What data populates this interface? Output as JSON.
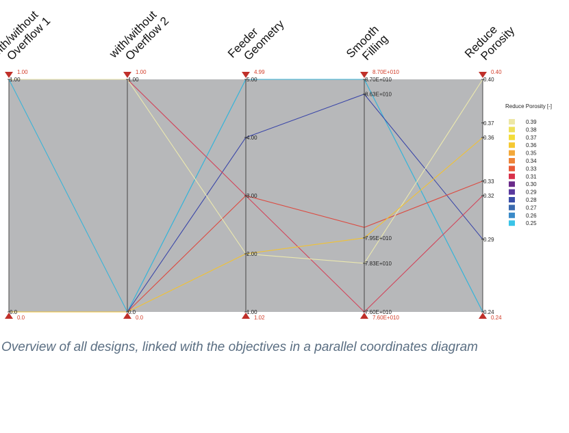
{
  "chart_data": {
    "type": "parallel-coordinates",
    "caption": "Overview of all designs, linked with the objectives in a parallel coordinates diagram",
    "axes": [
      {
        "key": "overflow1",
        "title": [
          "with/without",
          "Overflow 1"
        ],
        "min": 0.0,
        "max": 1.0,
        "min_label": "0.0",
        "max_label": "1.00",
        "ticks": [
          {
            "v": 1.0,
            "t": "1.00"
          },
          {
            "v": 0.0,
            "t": "0.0"
          }
        ]
      },
      {
        "key": "overflow2",
        "title": [
          "with/without",
          "Overflow 2"
        ],
        "min": 0.0,
        "max": 1.0,
        "min_label": "0.0",
        "max_label": "1.00",
        "ticks": [
          {
            "v": 1.0,
            "t": "1.00"
          },
          {
            "v": 0.0,
            "t": "0.0"
          }
        ]
      },
      {
        "key": "feeder",
        "title": [
          "Feeder",
          "Geometry"
        ],
        "min": 1.0,
        "max": 5.0,
        "min_label": "1.02",
        "max_label": "4.99",
        "ticks": [
          {
            "v": 5.0,
            "t": "5.00"
          },
          {
            "v": 4.0,
            "t": "4.00"
          },
          {
            "v": 3.0,
            "t": "3.00"
          },
          {
            "v": 2.0,
            "t": "2.00"
          },
          {
            "v": 1.0,
            "t": "1.00"
          }
        ]
      },
      {
        "key": "smooth",
        "title": [
          "Smooth",
          "Filling"
        ],
        "min": 76000000000.0,
        "max": 87000000000.0,
        "min_label": "7.60E+010",
        "max_label": "8.70E+010",
        "ticks": [
          {
            "v": 87000000000.0,
            "t": "8.70E+010"
          },
          {
            "v": 86300000000.0,
            "t": "8.63E+010"
          },
          {
            "v": 79500000000.0,
            "t": "7.95E+010"
          },
          {
            "v": 78300000000.0,
            "t": "7.83E+010"
          },
          {
            "v": 76000000000.0,
            "t": "7.60E+010"
          }
        ]
      },
      {
        "key": "porosity",
        "title": [
          "Reduce",
          "Porosity"
        ],
        "min": 0.24,
        "max": 0.4,
        "min_label": "0.24",
        "max_label": "0.40",
        "ticks": [
          {
            "v": 0.4,
            "t": "0.40"
          },
          {
            "v": 0.37,
            "t": "0.37"
          },
          {
            "v": 0.36,
            "t": "0.36"
          },
          {
            "v": 0.33,
            "t": "0.33"
          },
          {
            "v": 0.32,
            "t": "0.32"
          },
          {
            "v": 0.29,
            "t": "0.29"
          },
          {
            "v": 0.24,
            "t": "0.24"
          }
        ]
      }
    ],
    "designs": [
      {
        "values": [
          1,
          0,
          5.0,
          87000000000.0,
          0.24
        ],
        "color": "#3ab4d8"
      },
      {
        "values": [
          0,
          0,
          5.0,
          87000000000.0,
          0.24
        ],
        "color": "#3ab4d8"
      },
      {
        "values": [
          0,
          0,
          4.0,
          86300000000.0,
          0.29
        ],
        "color": "#3a46a8"
      },
      {
        "values": [
          1,
          1,
          3.0,
          76000000000.0,
          0.32
        ],
        "color": "#d2445a"
      },
      {
        "values": [
          0,
          0,
          3.0,
          80000000000.0,
          0.33
        ],
        "color": "#dc4a40"
      },
      {
        "values": [
          1,
          1,
          2.0,
          78300000000.0,
          0.4
        ],
        "color": "#ece9ae"
      },
      {
        "values": [
          0,
          0,
          2.0,
          79500000000.0,
          0.36
        ],
        "color": "#f2c232"
      }
    ],
    "legend": {
      "title": "Reduce Porosity [-]",
      "position": "right",
      "items": [
        {
          "label": "0.39",
          "color": "#ede7a6"
        },
        {
          "label": "0.38",
          "color": "#eee05a"
        },
        {
          "label": "0.37",
          "color": "#f3dc3a"
        },
        {
          "label": "0.36",
          "color": "#f5c832"
        },
        {
          "label": "0.35",
          "color": "#f3a83a"
        },
        {
          "label": "0.34",
          "color": "#ee8438"
        },
        {
          "label": "0.33",
          "color": "#e85a38"
        },
        {
          "label": "0.31",
          "color": "#d8304a"
        },
        {
          "label": "0.30",
          "color": "#6a2a8a"
        },
        {
          "label": "0.29",
          "color": "#5a3a9e"
        },
        {
          "label": "0.28",
          "color": "#3a4ea8"
        },
        {
          "label": "0.27",
          "color": "#3a6aae"
        },
        {
          "label": "0.26",
          "color": "#3a8ac8"
        },
        {
          "label": "0.25",
          "color": "#3ac4e8"
        }
      ]
    },
    "colors": {
      "panel": "#b7b8ba",
      "axis": "#444444",
      "marker": "#c0302a",
      "limit_text": "#d23c28"
    }
  }
}
